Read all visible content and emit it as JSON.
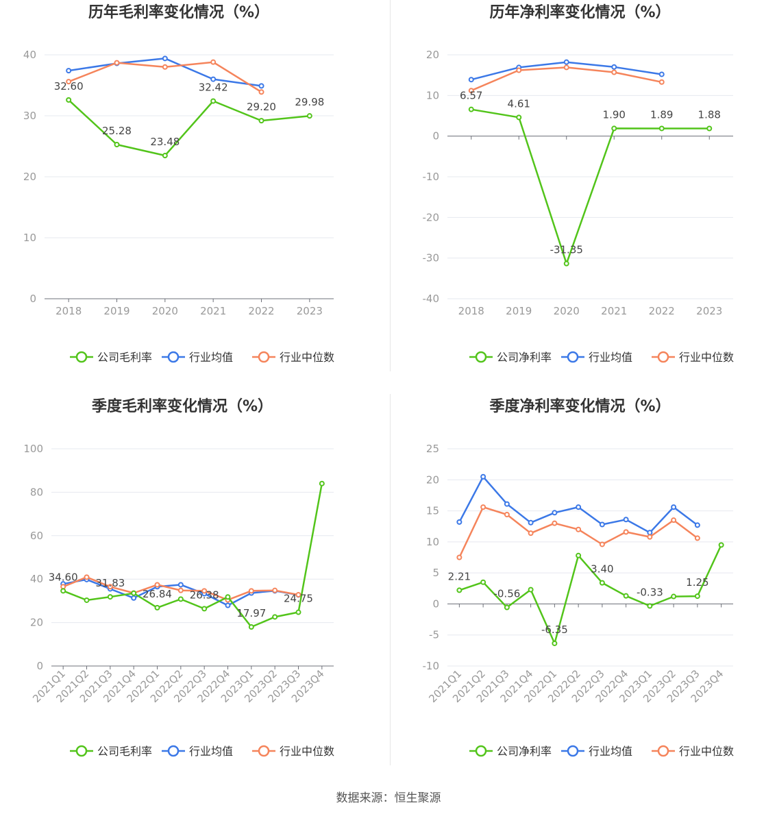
{
  "source_text": "数据来源：恒生聚源",
  "legend_labels": {
    "company_gross": "公司毛利率",
    "company_net": "公司净利率",
    "industry_avg": "行业均值",
    "industry_median": "行业中位数"
  },
  "colors": {
    "company": "#52c41a",
    "industry_avg": "#3b78e7",
    "industry_median": "#f5845b",
    "axis": "#999999",
    "grid": "#e6e8ef",
    "title": "#333333"
  },
  "chart_data": [
    {
      "type": "line",
      "title": "历年毛利率变化情况（%）",
      "categories": [
        "2018",
        "2019",
        "2020",
        "2021",
        "2022",
        "2023"
      ],
      "ylim": [
        0,
        40
      ],
      "yticks": [
        0,
        10,
        20,
        30,
        40
      ],
      "grid": true,
      "legend_position": "bottom",
      "series": [
        {
          "name": "公司毛利率",
          "key": "company",
          "values": [
            32.6,
            25.28,
            23.48,
            32.42,
            29.2,
            29.98
          ],
          "labels": [
            "32.60",
            "25.28",
            "23.48",
            "32.42",
            "29.20",
            "29.98"
          ]
        },
        {
          "name": "行业均值",
          "key": "industry_avg",
          "values": [
            37.4,
            38.6,
            39.4,
            36.0,
            34.9,
            null
          ]
        },
        {
          "name": "行业中位数",
          "key": "industry_median",
          "values": [
            35.6,
            38.7,
            38.0,
            38.8,
            33.9,
            null
          ]
        }
      ]
    },
    {
      "type": "line",
      "title": "历年净利率变化情况（%）",
      "categories": [
        "2018",
        "2019",
        "2020",
        "2021",
        "2022",
        "2023"
      ],
      "ylim": [
        -40,
        20
      ],
      "yticks": [
        -40,
        -30,
        -20,
        -10,
        0,
        10,
        20
      ],
      "grid": true,
      "legend_position": "bottom",
      "series": [
        {
          "name": "公司净利率",
          "key": "company",
          "values": [
            6.57,
            4.61,
            -31.35,
            1.9,
            1.89,
            1.88
          ],
          "labels": [
            "6.57",
            "4.61",
            "-31.35",
            "1.90",
            "1.89",
            "1.88"
          ]
        },
        {
          "name": "行业均值",
          "key": "industry_avg",
          "values": [
            13.9,
            16.9,
            18.2,
            17.0,
            15.2,
            null
          ]
        },
        {
          "name": "行业中位数",
          "key": "industry_median",
          "values": [
            11.2,
            16.2,
            16.9,
            15.7,
            13.3,
            null
          ]
        }
      ]
    },
    {
      "type": "line",
      "title": "季度毛利率变化情况（%）",
      "categories": [
        "2021Q1",
        "2021Q2",
        "2021Q3",
        "2021Q4",
        "2022Q1",
        "2022Q2",
        "2022Q3",
        "2022Q4",
        "2023Q1",
        "2023Q2",
        "2023Q3",
        "2023Q4"
      ],
      "ylim": [
        0,
        100
      ],
      "yticks": [
        0,
        20,
        40,
        60,
        80,
        100
      ],
      "grid": true,
      "legend_position": "bottom",
      "series": [
        {
          "name": "公司毛利率",
          "key": "company",
          "values": [
            34.6,
            30.3,
            31.83,
            33.5,
            26.84,
            30.8,
            26.38,
            31.8,
            17.97,
            22.6,
            24.75,
            84.0
          ],
          "labels": [
            "34.60",
            "",
            "31.83",
            "",
            "26.84",
            "",
            "26.38",
            "",
            "17.97",
            "",
            "24.75",
            ""
          ]
        },
        {
          "name": "行业均值",
          "key": "industry_avg",
          "values": [
            37.8,
            39.8,
            35.5,
            31.3,
            36.5,
            37.4,
            33.3,
            27.9,
            33.6,
            34.6,
            32.7,
            null
          ]
        },
        {
          "name": "行业中位数",
          "key": "industry_median",
          "values": [
            36.5,
            40.9,
            36.5,
            33.6,
            37.4,
            34.8,
            34.6,
            30.4,
            34.6,
            34.8,
            32.8,
            null
          ]
        }
      ]
    },
    {
      "type": "line",
      "title": "季度净利率变化情况（%）",
      "categories": [
        "2021Q1",
        "2021Q2",
        "2021Q3",
        "2021Q4",
        "2022Q1",
        "2022Q2",
        "2022Q3",
        "2022Q4",
        "2023Q1",
        "2023Q2",
        "2023Q3",
        "2023Q4"
      ],
      "ylim": [
        -10,
        25
      ],
      "yticks": [
        -10,
        -5,
        0,
        5,
        10,
        15,
        20,
        25
      ],
      "grid": true,
      "legend_position": "bottom",
      "series": [
        {
          "name": "公司净利率",
          "key": "company",
          "values": [
            2.21,
            3.5,
            -0.56,
            2.3,
            -6.35,
            7.8,
            3.4,
            1.3,
            -0.33,
            1.2,
            1.25,
            9.5
          ],
          "labels": [
            "2.21",
            "",
            "-0.56",
            "",
            "-6.35",
            "",
            "3.40",
            "",
            "-0.33",
            "",
            "1.25",
            ""
          ]
        },
        {
          "name": "行业均值",
          "key": "industry_avg",
          "values": [
            13.2,
            20.5,
            16.1,
            13.1,
            14.7,
            15.6,
            12.8,
            13.6,
            11.5,
            15.6,
            12.7,
            null
          ]
        },
        {
          "name": "行业中位数",
          "key": "industry_median",
          "values": [
            7.5,
            15.6,
            14.4,
            11.4,
            13.0,
            12.0,
            9.6,
            11.6,
            10.8,
            13.5,
            10.6,
            null
          ]
        }
      ]
    }
  ]
}
